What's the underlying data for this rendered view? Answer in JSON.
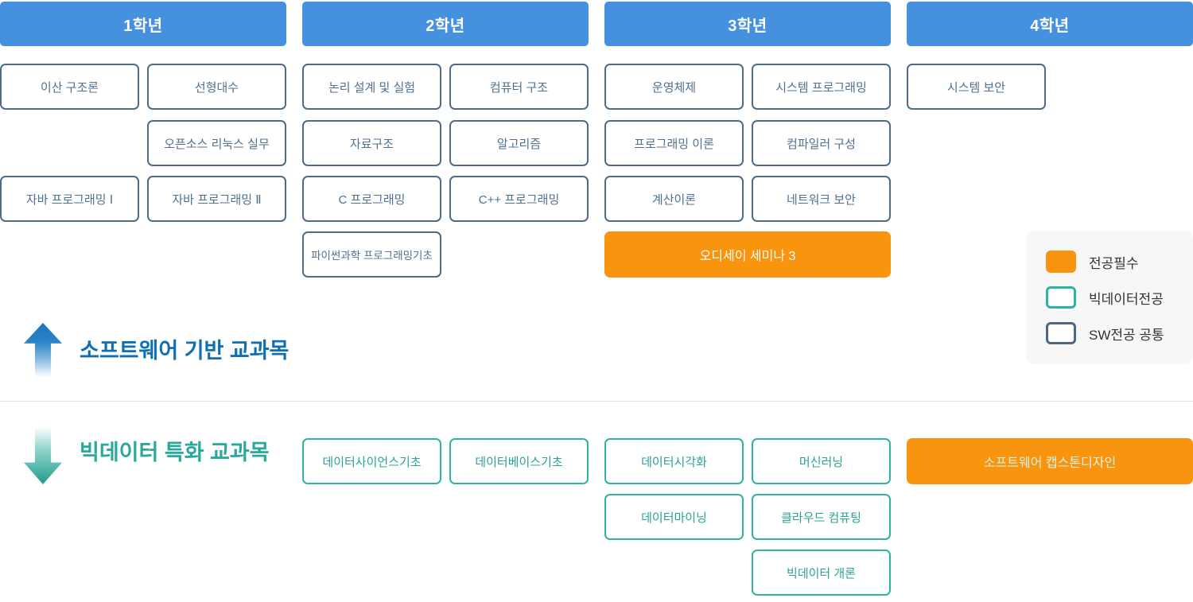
{
  "colors": {
    "year_header_blue": "#4591e0",
    "required_orange": "#f8940d",
    "sw_common_border": "#4e6b89",
    "sw_common_text": "#50708f",
    "bigdata_border": "#2fb2a2",
    "bigdata_text": "#2aa396",
    "heading_software_blue": "#0e6fb5",
    "heading_bigdata_teal": "#2aa89c",
    "odyssey_text": "#ffffff",
    "capstone_text": "#d8f2e7",
    "legend_background": "#f7f7f7"
  },
  "years": [
    {
      "label": "1학년"
    },
    {
      "label": "2학년"
    },
    {
      "label": "3학년"
    },
    {
      "label": "4학년"
    }
  ],
  "sections": [
    {
      "id": "software",
      "title": "소프트웨어 기반 교과목",
      "arrow": "up-arrow"
    },
    {
      "id": "bigdata",
      "title": "빅데이터 특화 교과목",
      "arrow": "down-arrow"
    }
  ],
  "legend": {
    "items": [
      {
        "label": "전공필수",
        "swatch": "required"
      },
      {
        "label": "빅데이터전공",
        "swatch": "bigdata"
      },
      {
        "label": "SW전공 공통",
        "swatch": "sw-common"
      }
    ]
  },
  "courses": [
    {
      "label": "이산 구조론",
      "year": 1,
      "row": 0,
      "slot": "left",
      "category": "sw-common",
      "section": "software"
    },
    {
      "label": "선형대수",
      "year": 1,
      "row": 0,
      "slot": "right",
      "category": "sw-common",
      "section": "software"
    },
    {
      "label": "오픈소스 리눅스 실무",
      "year": 1,
      "row": 1,
      "slot": "right",
      "category": "sw-common",
      "section": "software"
    },
    {
      "label": "자바 프로그래밍 Ⅰ",
      "year": 1,
      "row": 2,
      "slot": "left",
      "category": "sw-common",
      "section": "software"
    },
    {
      "label": "자바 프로그래밍 Ⅱ",
      "year": 1,
      "row": 2,
      "slot": "right",
      "category": "sw-common",
      "section": "software"
    },
    {
      "label": "논리 설계 및 실험",
      "year": 2,
      "row": 0,
      "slot": "left",
      "category": "sw-common",
      "section": "software"
    },
    {
      "label": "컴퓨터 구조",
      "year": 2,
      "row": 0,
      "slot": "right",
      "category": "sw-common",
      "section": "software"
    },
    {
      "label": "자료구조",
      "year": 2,
      "row": 1,
      "slot": "left",
      "category": "sw-common",
      "section": "software"
    },
    {
      "label": "알고리즘",
      "year": 2,
      "row": 1,
      "slot": "right",
      "category": "sw-common",
      "section": "software"
    },
    {
      "label": "C 프로그래밍",
      "year": 2,
      "row": 2,
      "slot": "left",
      "category": "sw-common",
      "section": "software"
    },
    {
      "label": "C++ 프로그래밍",
      "year": 2,
      "row": 2,
      "slot": "right",
      "category": "sw-common",
      "section": "software"
    },
    {
      "label": "파이썬과학 프로그래밍기초",
      "year": 2,
      "row": 3,
      "slot": "left",
      "category": "sw-common",
      "section": "software"
    },
    {
      "label": "운영체제",
      "year": 3,
      "row": 0,
      "slot": "left",
      "category": "sw-common",
      "section": "software"
    },
    {
      "label": "시스템 프로그래밍",
      "year": 3,
      "row": 0,
      "slot": "right",
      "category": "sw-common",
      "section": "software"
    },
    {
      "label": "프로그래밍 이론",
      "year": 3,
      "row": 1,
      "slot": "left",
      "category": "sw-common",
      "section": "software"
    },
    {
      "label": "컴파일러 구성",
      "year": 3,
      "row": 1,
      "slot": "right",
      "category": "sw-common",
      "section": "software"
    },
    {
      "label": "계산이론",
      "year": 3,
      "row": 2,
      "slot": "left",
      "category": "sw-common",
      "section": "software"
    },
    {
      "label": "네트워크 보안",
      "year": 3,
      "row": 2,
      "slot": "right",
      "category": "sw-common",
      "section": "software"
    },
    {
      "label": "오디세이 세미나 3",
      "year": 3,
      "row": 3,
      "slot": "full",
      "category": "required",
      "section": "software"
    },
    {
      "label": "시스템 보안",
      "year": 4,
      "row": 0,
      "slot": "left",
      "category": "sw-common",
      "section": "software"
    },
    {
      "label": "데이터사이언스기초",
      "year": 2,
      "row": 0,
      "slot": "left",
      "category": "bigdata",
      "section": "bigdata"
    },
    {
      "label": "데이터베이스기초",
      "year": 2,
      "row": 0,
      "slot": "right",
      "category": "bigdata",
      "section": "bigdata"
    },
    {
      "label": "데이터시각화",
      "year": 3,
      "row": 0,
      "slot": "left",
      "category": "bigdata",
      "section": "bigdata"
    },
    {
      "label": "머신러닝",
      "year": 3,
      "row": 0,
      "slot": "right",
      "category": "bigdata",
      "section": "bigdata"
    },
    {
      "label": "소프트웨어 캡스톤디자인",
      "year": 4,
      "row": 0,
      "slot": "full",
      "category": "required",
      "section": "bigdata"
    },
    {
      "label": "데이터마이닝",
      "year": 3,
      "row": 1,
      "slot": "left",
      "category": "bigdata",
      "section": "bigdata"
    },
    {
      "label": "클라우드 컴퓨팅",
      "year": 3,
      "row": 1,
      "slot": "right",
      "category": "bigdata",
      "section": "bigdata"
    },
    {
      "label": "빅데이터 개론",
      "year": 3,
      "row": 2,
      "slot": "right",
      "category": "bigdata",
      "section": "bigdata"
    }
  ]
}
